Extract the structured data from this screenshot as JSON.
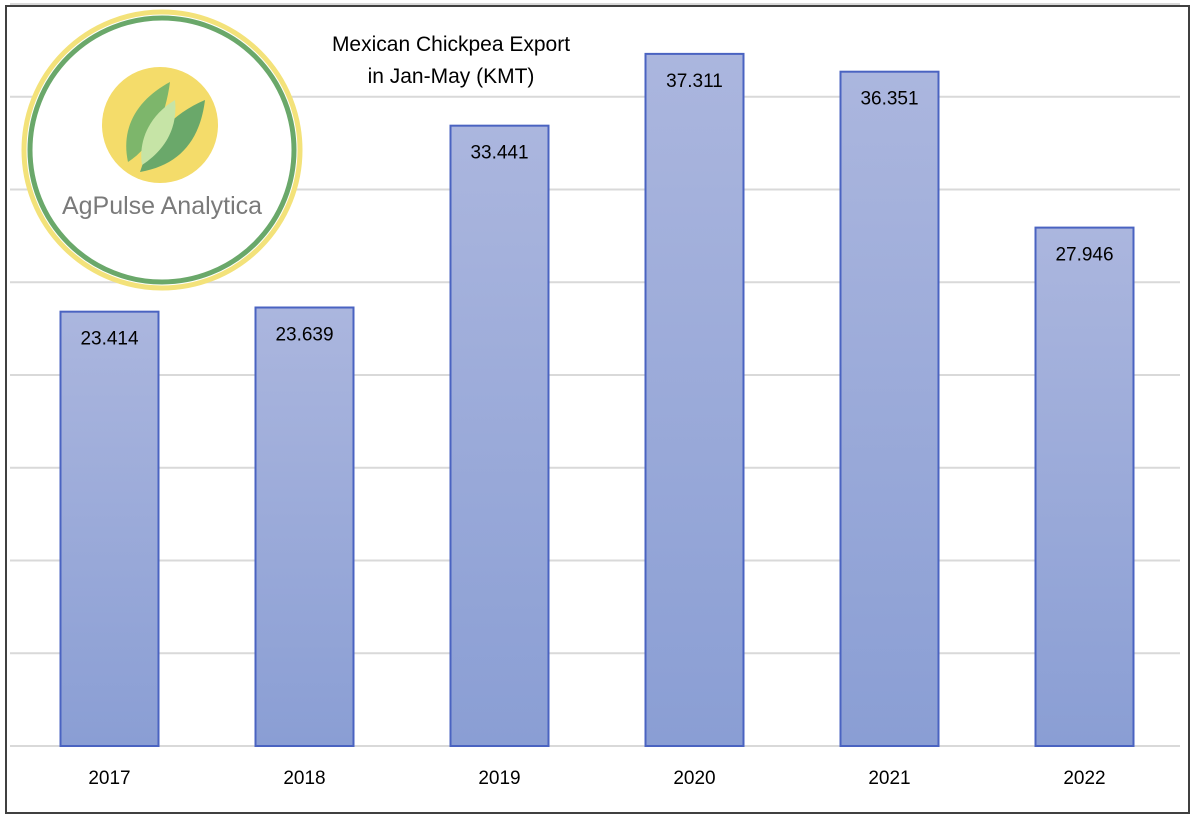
{
  "chart_data": {
    "type": "bar",
    "title": "Mexican Chickpea Export in Jan-May (KMT)",
    "title_lines": [
      "Mexican Chickpea Export",
      "in Jan-May (KMT)"
    ],
    "categories": [
      "2017",
      "2018",
      "2019",
      "2020",
      "2021",
      "2022"
    ],
    "values": [
      23.414,
      23.639,
      33.441,
      37.311,
      36.351,
      27.946
    ],
    "data_labels": [
      "23.414",
      "23.639",
      "33.441",
      "37.311",
      "36.351",
      "27.946"
    ],
    "xlabel": "",
    "ylabel": "",
    "ylim": [
      0,
      40
    ],
    "grid": true,
    "y_axis_labels_shown": false,
    "legend": "none"
  },
  "logo": {
    "text": "AgPulse Analytica",
    "ring_outer_color": "#f3e27a",
    "ring_inner_color": "#6aa86a",
    "sun_color": "#f4dc6a",
    "leaf_dark_color": "#7db66b",
    "leaf_light_color": "#c6e4a6"
  },
  "colors": {
    "bar_fill_top": "#abb6de",
    "bar_fill_bottom": "#8a9ed4",
    "bar_stroke": "#4a63c1",
    "gridline": "#d9d9d9",
    "text": "#000000"
  }
}
